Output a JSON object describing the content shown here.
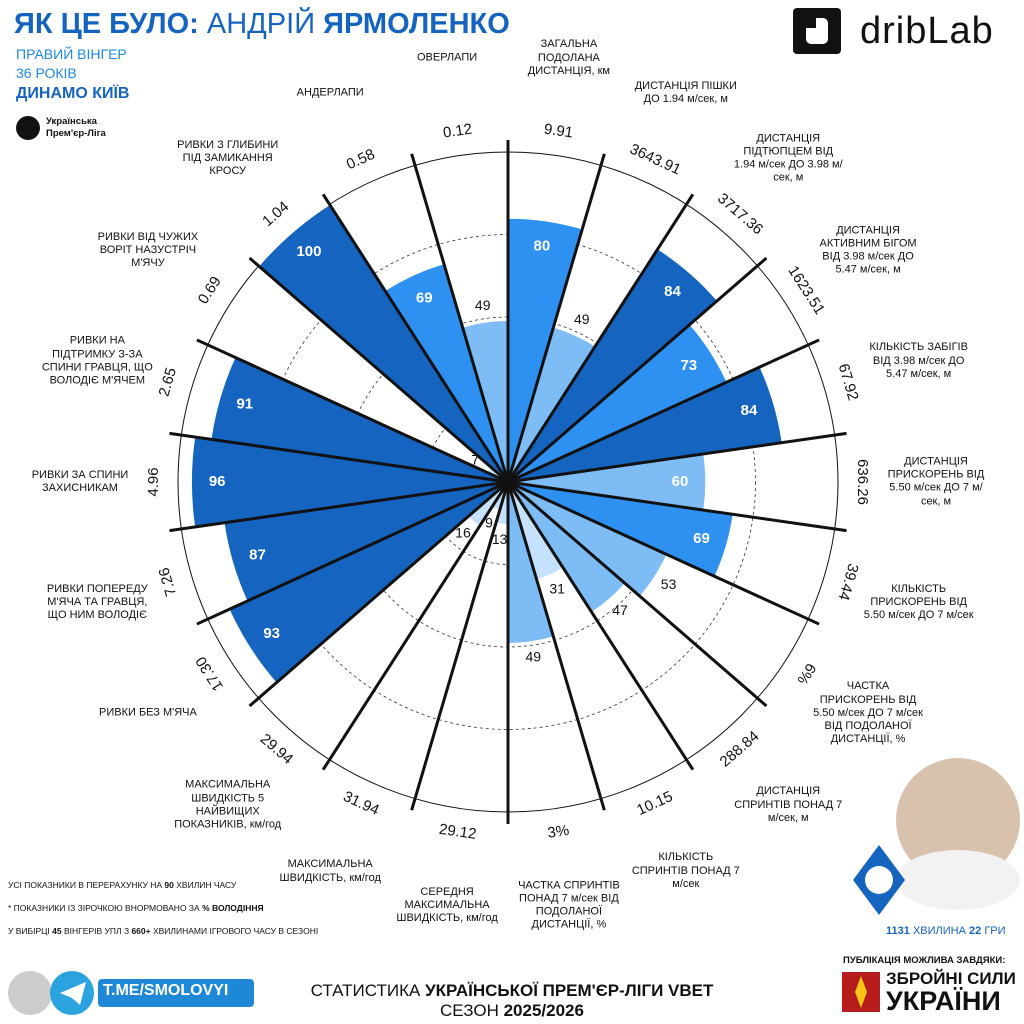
{
  "header": {
    "title_prefix": "ЯК ЦЕ БУЛО:",
    "first_name": "АНДРІЙ",
    "last_name": "ЯРМОЛЕНКО",
    "position": "ПРАВИЙ ВІНГЕР",
    "age": "36 РОКІВ",
    "club": "ДИНАМО КИЇВ",
    "league": "Українська Прем'єр-Ліга",
    "brand": "dribLab"
  },
  "chart_data": {
    "type": "pizza",
    "categories": [
      "ЗАГАЛЬНА ПОДОЛАНА ДИСТАНЦІЯ, км",
      "ДИСТАНЦІЯ ПІШКИ ДО 1.94 м/сек, м",
      "ДИСТАНЦІЯ ПІДТЮПЦЕМ ВІД 1.94 м/сек ДО 3.98 м/сек, м",
      "ДИСТАНЦІЯ АКТИВНИМ БІГОМ ВІД 3.98 м/сек ДО 5.47 м/сек, м",
      "КІЛЬКІСТЬ ЗАБІГІВ ВІД 3.98 м/сек ДО 5.47 м/сек, м",
      "ДИСТАНЦІЯ ПРИСКОРЕНЬ ВІД 5.50 м/сек ДО 7 м/сек, м",
      "КІЛЬКІСТЬ ПРИСКОРЕНЬ ВІД 5.50 м/сек ДО 7 м/сек",
      "ЧАСТКА ПРИСКОРЕНЬ ВІД 5.50 м/сек ДО 7 м/сек ВІД ПОДОЛАНОЇ ДИСТАНЦІЇ, %",
      "ДИСТАНЦІЯ СПРИНТІВ ПОНАД 7 м/сек, м",
      "КІЛЬКІСТЬ СПРИНТІВ ПОНАД 7 м/сек",
      "ЧАСТКА СПРИНТІВ ПОНАД 7 м/сек ВІД ПОДОЛАНОЇ ДИСТАНЦІЇ, %",
      "СЕРЕДНЯ МАКСИМАЛЬНА ШВИДКІСТЬ, км/год",
      "МАКСИМАЛЬНА ШВИДКІСТЬ, км/год",
      "МАКСИМАЛЬНА ШВИДКІСТЬ 5 НАЙВИЩИХ ПОКАЗНИКІВ, км/год",
      "РИВКИ БЕЗ М'ЯЧА",
      "РИВКИ ПОПЕРЕДУ М'ЯЧА ТА ГРАВЦЯ, ЩО НИМ ВОЛОДІЄ",
      "РИВКИ ЗА СПИНИ ЗАХИСНИКАМ",
      "РИВКИ НА ПІДТРИМКУ З-ЗА СПИНИ ГРАВЦЯ, ЩО ВОЛОДІЄ М'ЯЧЕМ",
      "РИВКИ ВІД ЧУЖИХ ВОРІТ НАЗУСТРІЧ М'ЯЧУ",
      "РИВКИ З ГЛИБИНИ ПІД ЗАМИКАННЯ КРОСУ",
      "АНДЕРЛАПИ",
      "ОВЕРЛАПИ"
    ],
    "values": [
      80,
      49,
      84,
      73,
      84,
      60,
      69,
      53,
      47,
      31,
      49,
      13,
      9,
      16,
      93,
      87,
      96,
      91,
      7,
      100,
      69,
      49
    ],
    "raw_values": [
      "9.91",
      "3643.91",
      "3717.36",
      "1623.51",
      "67.92",
      "636.26",
      "39.44",
      "6%",
      "288.84",
      "10.15",
      "3%",
      "29.12",
      "31.94",
      "29.94",
      "17.30",
      "7.26",
      "4.96",
      "2.65",
      "0.69",
      "1.04",
      "0.58",
      "0.12"
    ],
    "colors": [
      "#2e90f0",
      "#7dbcf5",
      "#1565c0",
      "#2e90f0",
      "#1565c0",
      "#7dbcf5",
      "#2e90f0",
      "#7dbcf5",
      "#7dbcf5",
      "#c5e1fb",
      "#7dbcf5",
      "#c5e1fb",
      "#c5e1fb",
      "#c5e1fb",
      "#1565c0",
      "#1565c0",
      "#1565c0",
      "#1565c0",
      "#c5e1fb",
      "#1565c0",
      "#2e90f0",
      "#7dbcf5"
    ],
    "rlim": [
      0,
      100
    ]
  },
  "footer": {
    "notes": [
      [
        {
          "text": "УСІ ПОКАЗНИКИ В ПЕРЕРАХУНКУ НА ",
          "bold": false
        },
        {
          "text": "90",
          "bold": true
        },
        {
          "text": " ХВИЛИН ЧАСУ",
          "bold": false
        }
      ],
      [
        {
          "text": "* ПОКАЗНИКИ ІЗ ЗІРОЧКОЮ ВНОРМОВАНО ЗА ",
          "bold": false
        },
        {
          "text": "% ВОЛОДІННЯ",
          "bold": true
        }
      ],
      [
        {
          "text": "У ВИБІРЦІ ",
          "bold": false
        },
        {
          "text": "45",
          "bold": true
        },
        {
          "text": " ВІНГЕРІВ УПЛ З ",
          "bold": false
        },
        {
          "text": "660+",
          "bold": true
        },
        {
          "text": " ХВИЛИНАМИ ІГРОВОГО ЧАСУ В СЕЗОНІ",
          "bold": false
        }
      ]
    ],
    "telegram": "T.ME/SMOLOVYI",
    "stats_prefix": "СТАТИСТИКА",
    "stats_league": "УКРАЇНСЬКОЇ ПРЕМ'ЄР-ЛІГИ VBET",
    "season_prefix": "СЕЗОН",
    "season": "2025/2026",
    "minutes": "1131",
    "minutes_word": "ХВИЛИНА",
    "games": "22",
    "games_word": "ГРИ",
    "thanks": "ПУБЛІКАЦІЯ МОЖЛИВА ЗАВДЯКИ:",
    "forces_1": "ЗБРОЙНІ СИЛИ",
    "forces_2": "УКРАЇНИ"
  }
}
